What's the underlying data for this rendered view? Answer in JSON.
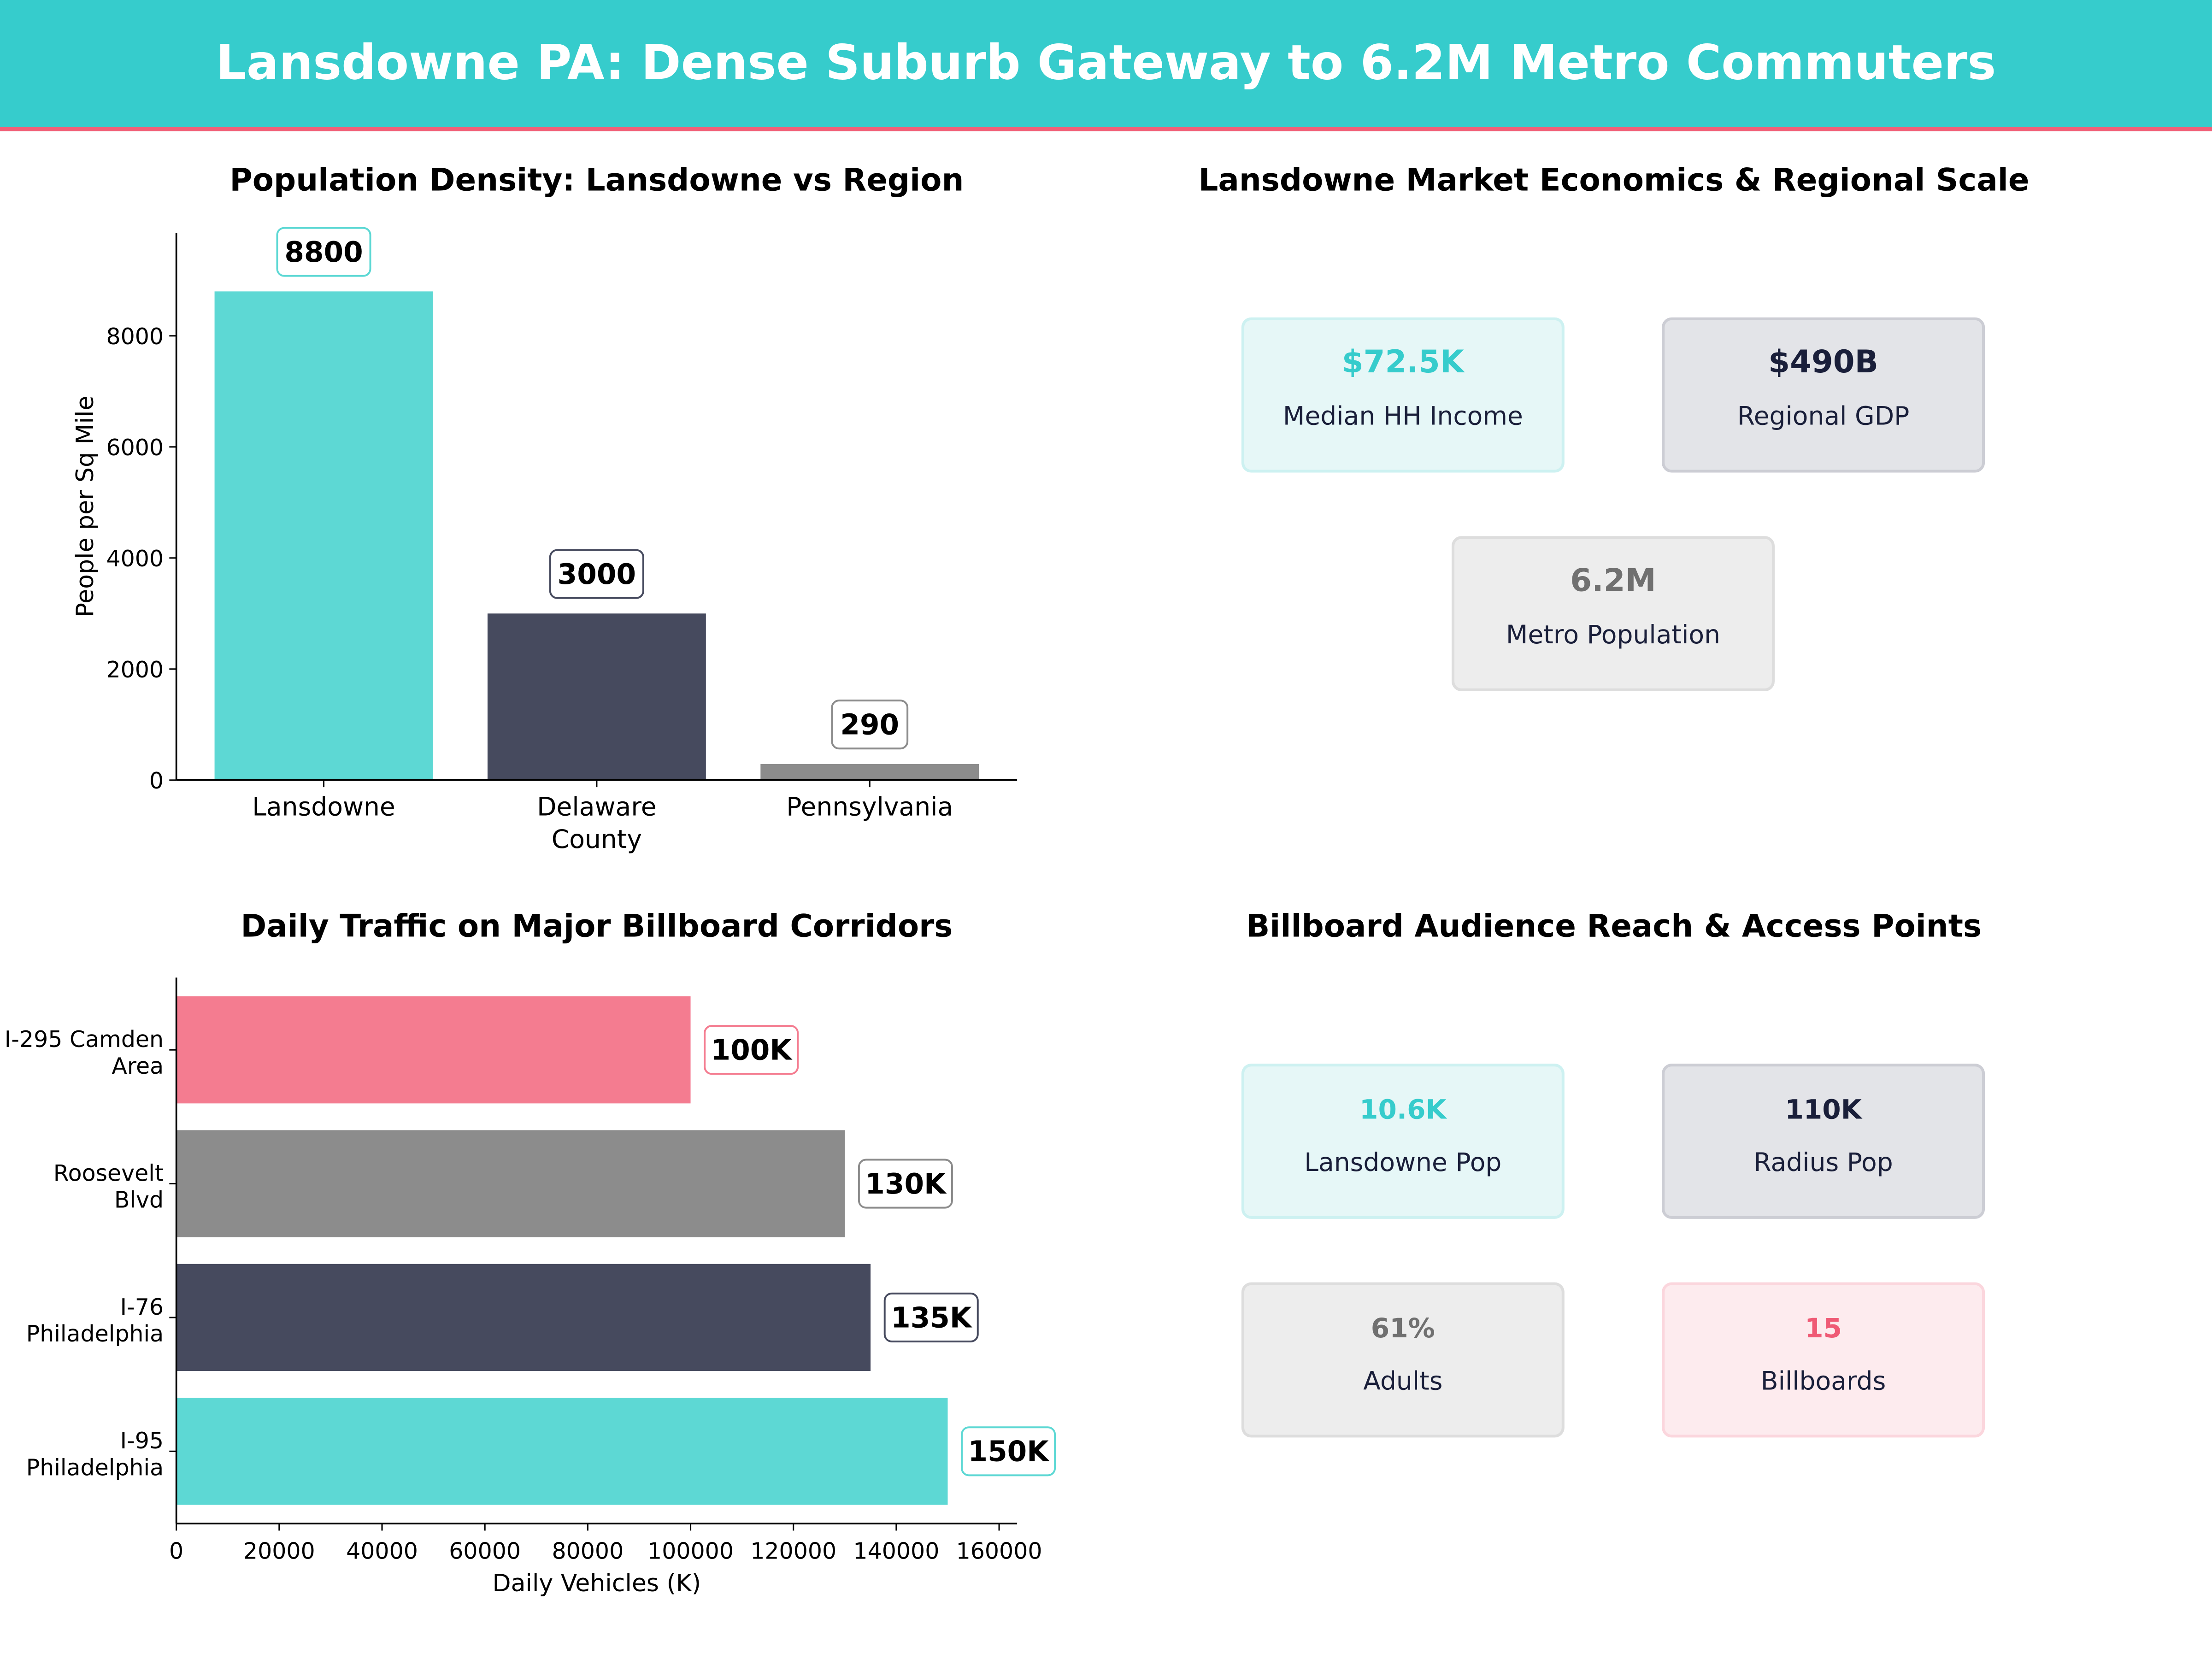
{
  "header": {
    "title": "Lansdowne PA: Dense Suburb Gateway to 6.2M Metro Commuters"
  },
  "colors": {
    "teal": "#5DD8D4",
    "dark": "#464A5E",
    "gray": "#8C8C8C",
    "pink": "#F47C90",
    "header": "#36CCCC",
    "accent_line": "#F06078"
  },
  "chart_data": [
    {
      "type": "bar",
      "title": "Population Density: Lansdowne vs Region",
      "categories": [
        "Lansdowne",
        "Delaware\nCounty",
        "Pennsylvania"
      ],
      "values": [
        8800,
        3000,
        290
      ],
      "value_labels": [
        "8800",
        "3000",
        "290"
      ],
      "bar_colors": [
        "#5DD8D4",
        "#464A5E",
        "#8C8C8C"
      ],
      "xlabel": "",
      "ylabel": "People per Sq Mile",
      "ylim": [
        0,
        9856
      ],
      "yticks": [
        0,
        2000,
        4000,
        6000,
        8000
      ],
      "grid": false
    },
    {
      "type": "bar",
      "orientation": "horizontal",
      "title": "Daily Traffic on Major Billboard Corridors",
      "categories": [
        "I-95\nPhiladelphia",
        "I-76\nPhiladelphia",
        "Roosevelt\nBlvd",
        "I-295 Camden\nArea"
      ],
      "values": [
        150000,
        135000,
        130000,
        100000
      ],
      "value_labels": [
        "150K",
        "135K",
        "130K",
        "100K"
      ],
      "bar_colors": [
        "#5DD8D4",
        "#464A5E",
        "#8C8C8C",
        "#F47C90"
      ],
      "xlabel": "Daily Vehicles (K)",
      "ylabel": "",
      "xlim": [
        0,
        163500
      ],
      "xticks": [
        0,
        20000,
        40000,
        60000,
        80000,
        100000,
        120000,
        140000,
        160000
      ],
      "grid": false
    }
  ],
  "economics": {
    "title": "Lansdowne Market Economics & Regional Scale",
    "cards": [
      {
        "value": "$72.5K",
        "label": "Median HH Income",
        "theme": "teal"
      },
      {
        "value": "$490B",
        "label": "Regional GDP",
        "theme": "dark"
      },
      {
        "value": "6.2M",
        "label": "Metro Population",
        "theme": "gray"
      }
    ]
  },
  "audience": {
    "title": "Billboard Audience Reach & Access Points",
    "cards": [
      {
        "value": "10.6K",
        "label": "Lansdowne Pop",
        "theme": "teal"
      },
      {
        "value": "110K",
        "label": "Radius Pop",
        "theme": "dark"
      },
      {
        "value": "61%",
        "label": "Adults",
        "theme": "gray"
      },
      {
        "value": "15",
        "label": "Billboards",
        "theme": "pink"
      }
    ]
  }
}
